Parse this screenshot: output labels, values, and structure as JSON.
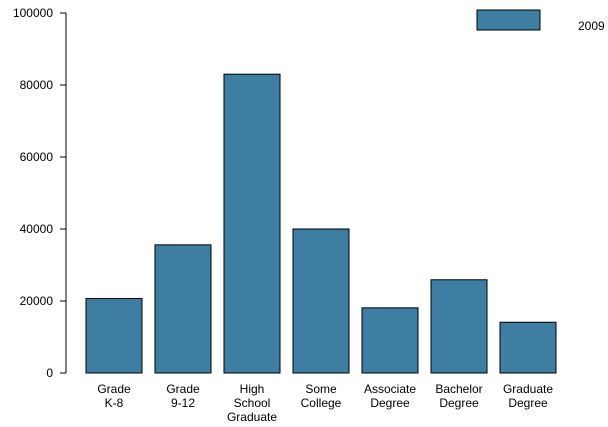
{
  "chart_data": {
    "type": "bar",
    "title": "",
    "xlabel": "",
    "ylabel": "",
    "categories": [
      [
        "Grade",
        "K-8"
      ],
      [
        "Grade",
        "9-12"
      ],
      [
        "High",
        "School",
        "Graduate"
      ],
      [
        "Some",
        "College"
      ],
      [
        "Associate",
        "Degree"
      ],
      [
        "Bachelor",
        "Degree"
      ],
      [
        "Graduate",
        "Degree"
      ]
    ],
    "series": [
      {
        "name": "2009",
        "values": [
          20700,
          35600,
          83000,
          40000,
          18100,
          25900,
          14100
        ]
      }
    ],
    "ylim": [
      0,
      100000
    ],
    "yticks": [
      0,
      20000,
      40000,
      60000,
      80000,
      100000
    ],
    "legend_position": "top-right",
    "grid": false,
    "bar_color": "#3e7ea3",
    "edge_color": "#000000"
  }
}
